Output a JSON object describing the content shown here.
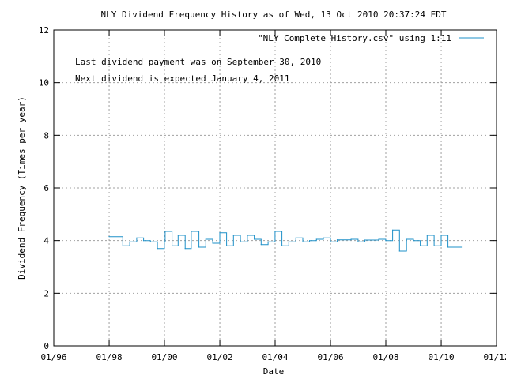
{
  "chart_data": {
    "type": "line",
    "title": "NLY Dividend Frequency History as of Wed, 13 Oct 2010 20:37:24 EDT",
    "xlabel": "Date",
    "ylabel": "Dividend Frequency (Times per year)",
    "annotations": [
      "Last dividend payment was on September 30, 2010",
      "Next dividend is expected January 4, 2011"
    ],
    "legend": {
      "label": "\"NLY_Complete_History.csv\" using 1:11",
      "placement": "top-right"
    },
    "grid": true,
    "xlim": [
      "1996-01-01",
      "2012-01-01"
    ],
    "ylim": [
      0,
      12
    ],
    "xticks": [
      {
        "label": "01/96",
        "date": "1996-01-01"
      },
      {
        "label": "01/98",
        "date": "1998-01-01"
      },
      {
        "label": "01/00",
        "date": "2000-01-01"
      },
      {
        "label": "01/02",
        "date": "2002-01-01"
      },
      {
        "label": "01/04",
        "date": "2004-01-01"
      },
      {
        "label": "01/06",
        "date": "2006-01-01"
      },
      {
        "label": "01/08",
        "date": "2008-01-01"
      },
      {
        "label": "01/10",
        "date": "2010-01-01"
      },
      {
        "label": "01/12",
        "date": "2012-01-01"
      }
    ],
    "yticks": [
      0,
      2,
      4,
      6,
      8,
      10,
      12
    ],
    "series": [
      {
        "name": "\"NLY_Complete_History.csv\" using 1:11",
        "color": "#1e90c8",
        "step": true,
        "points": [
          {
            "x": "1997-12-31",
            "y": 4.15
          },
          {
            "x": "1998-06-30",
            "y": 3.8
          },
          {
            "x": "1998-09-30",
            "y": 3.95
          },
          {
            "x": "1998-12-31",
            "y": 4.1
          },
          {
            "x": "1999-03-31",
            "y": 4.0
          },
          {
            "x": "1999-06-30",
            "y": 3.95
          },
          {
            "x": "1999-09-30",
            "y": 3.7
          },
          {
            "x": "1999-12-31",
            "y": 3.95
          },
          {
            "x": "2000-01-10",
            "y": 4.35
          },
          {
            "x": "2000-04-10",
            "y": 3.8
          },
          {
            "x": "2000-06-30",
            "y": 4.2
          },
          {
            "x": "2000-09-30",
            "y": 3.7
          },
          {
            "x": "2000-12-20",
            "y": 4.35
          },
          {
            "x": "2001-03-31",
            "y": 3.75
          },
          {
            "x": "2001-06-30",
            "y": 4.05
          },
          {
            "x": "2001-09-30",
            "y": 3.9
          },
          {
            "x": "2001-12-31",
            "y": 4.3
          },
          {
            "x": "2002-03-31",
            "y": 3.8
          },
          {
            "x": "2002-06-30",
            "y": 4.2
          },
          {
            "x": "2002-09-30",
            "y": 3.95
          },
          {
            "x": "2002-12-31",
            "y": 4.2
          },
          {
            "x": "2003-03-31",
            "y": 4.05
          },
          {
            "x": "2003-06-30",
            "y": 3.85
          },
          {
            "x": "2003-09-30",
            "y": 3.95
          },
          {
            "x": "2003-12-31",
            "y": 4.35
          },
          {
            "x": "2004-03-31",
            "y": 3.8
          },
          {
            "x": "2004-06-30",
            "y": 3.95
          },
          {
            "x": "2004-09-30",
            "y": 4.1
          },
          {
            "x": "2004-12-31",
            "y": 3.95
          },
          {
            "x": "2005-03-31",
            "y": 4.0
          },
          {
            "x": "2005-06-30",
            "y": 4.05
          },
          {
            "x": "2005-09-30",
            "y": 4.1
          },
          {
            "x": "2005-12-31",
            "y": 3.95
          },
          {
            "x": "2006-03-31",
            "y": 4.03
          },
          {
            "x": "2006-09-30",
            "y": 4.05
          },
          {
            "x": "2006-12-31",
            "y": 3.95
          },
          {
            "x": "2007-03-31",
            "y": 4.02
          },
          {
            "x": "2007-09-30",
            "y": 4.05
          },
          {
            "x": "2007-12-31",
            "y": 4.0
          },
          {
            "x": "2008-03-31",
            "y": 4.4
          },
          {
            "x": "2008-06-30",
            "y": 3.6
          },
          {
            "x": "2008-09-30",
            "y": 4.05
          },
          {
            "x": "2008-12-31",
            "y": 4.0
          },
          {
            "x": "2009-03-31",
            "y": 3.8
          },
          {
            "x": "2009-06-30",
            "y": 4.2
          },
          {
            "x": "2009-09-30",
            "y": 3.8
          },
          {
            "x": "2009-12-31",
            "y": 4.2
          },
          {
            "x": "2010-03-31",
            "y": 3.75
          }
        ],
        "end": "2010-09-30"
      }
    ]
  }
}
